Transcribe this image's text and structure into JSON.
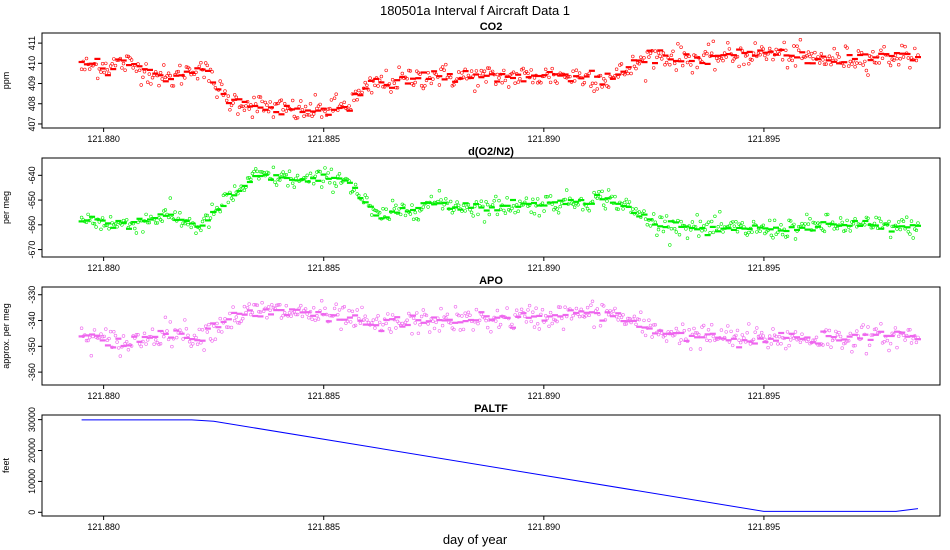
{
  "title": "180501a    Interval f Aircraft Data 1",
  "xlabel": "day of year",
  "colors": {
    "co2": "#ff0000",
    "o2n2": "#00ee00",
    "apo": "#ee66ee",
    "paltf": "#0000ff",
    "frame": "#000000"
  },
  "chart_data": [
    {
      "type": "scatter",
      "title": "CO2",
      "ylabel": "ppm",
      "xlim": [
        121.8786,
        121.899
      ],
      "ylim": [
        406.8,
        411.5
      ],
      "x_ticks": [
        121.88,
        121.885,
        121.89,
        121.895
      ],
      "x_tick_labels": [
        "121.880",
        "121.885",
        "121.890",
        "121.895"
      ],
      "y_ticks": [
        407,
        408,
        409,
        410,
        411
      ],
      "y_tick_labels": [
        "407",
        "408",
        "409",
        "410",
        "411"
      ],
      "x_start": 121.8795,
      "x_end": 121.8985,
      "trend_anchors_x": [
        121.8795,
        121.8805,
        121.8815,
        121.8822,
        121.8828,
        121.8835,
        121.8845,
        121.8855,
        121.8862,
        121.8875,
        121.8885,
        121.8905,
        121.8915,
        121.8925,
        121.8935,
        121.895,
        121.8965,
        121.8985
      ],
      "trend_anchors_y": [
        409.8,
        410.0,
        409.2,
        409.9,
        408.2,
        407.9,
        407.6,
        407.9,
        409.0,
        409.4,
        409.3,
        409.4,
        409.2,
        410.4,
        410.2,
        410.5,
        410.2,
        410.4
      ],
      "noise_sd": 0.5
    },
    {
      "type": "scatter",
      "title": "d(O2/N2)",
      "ylabel": "per meg",
      "xlim": [
        121.8786,
        121.899
      ],
      "ylim": [
        -673,
        -633
      ],
      "x_ticks": [
        121.88,
        121.885,
        121.89,
        121.895
      ],
      "x_tick_labels": [
        "121.880",
        "121.885",
        "121.890",
        "121.895"
      ],
      "y_ticks": [
        -640,
        -650,
        -660,
        -670
      ],
      "y_tick_labels": [
        "-640",
        "-650",
        "-660",
        "-670"
      ],
      "x_start": 121.8795,
      "x_end": 121.8985,
      "trend_anchors_x": [
        121.8795,
        121.8805,
        121.8815,
        121.8822,
        121.8828,
        121.8835,
        121.8845,
        121.8855,
        121.8862,
        121.8875,
        121.8885,
        121.8905,
        121.8915,
        121.8925,
        121.8935,
        121.895,
        121.8965,
        121.8985
      ],
      "trend_anchors_y": [
        -658,
        -660,
        -656,
        -661,
        -650,
        -640,
        -642,
        -641,
        -657,
        -651,
        -653,
        -651,
        -649,
        -659,
        -661,
        -662,
        -660,
        -661
      ],
      "noise_sd": 3.5
    },
    {
      "type": "scatter",
      "title": "APO",
      "ylabel": "approx. per meg",
      "xlim": [
        121.8786,
        121.899
      ],
      "ylim": [
        -365,
        -327
      ],
      "x_ticks": [
        121.88,
        121.885,
        121.89,
        121.895
      ],
      "x_tick_labels": [
        "121.880",
        "121.885",
        "121.890",
        "121.895"
      ],
      "y_ticks": [
        -330,
        -340,
        -350,
        -360
      ],
      "y_tick_labels": [
        "-330",
        "-340",
        "-350",
        "-360"
      ],
      "x_start": 121.8795,
      "x_end": 121.8985,
      "trend_anchors_x": [
        121.8795,
        121.8805,
        121.8815,
        121.8822,
        121.8828,
        121.8835,
        121.8845,
        121.8855,
        121.8862,
        121.8875,
        121.8885,
        121.8905,
        121.8915,
        121.8925,
        121.8935,
        121.895,
        121.8965,
        121.8985
      ],
      "trend_anchors_y": [
        -346,
        -349,
        -344,
        -346,
        -340,
        -336,
        -337,
        -339,
        -342,
        -340,
        -340,
        -338,
        -337,
        -344,
        -346,
        -347,
        -347,
        -346
      ],
      "noise_sd": 4
    },
    {
      "type": "line",
      "title": "PALTF",
      "ylabel": "feet",
      "xlim": [
        121.8786,
        121.899
      ],
      "ylim": [
        -1200,
        31500
      ],
      "x_ticks": [
        121.88,
        121.885,
        121.89,
        121.895
      ],
      "x_tick_labels": [
        "121.880",
        "121.885",
        "121.890",
        "121.895"
      ],
      "y_ticks": [
        0,
        10000,
        20000,
        30000
      ],
      "y_tick_labels": [
        "0",
        "10000",
        "20000",
        "30000"
      ],
      "x": [
        121.8795,
        121.882,
        121.8825,
        121.895,
        121.898,
        121.8985
      ],
      "y": [
        29900,
        29900,
        29500,
        300,
        300,
        1200
      ]
    }
  ]
}
